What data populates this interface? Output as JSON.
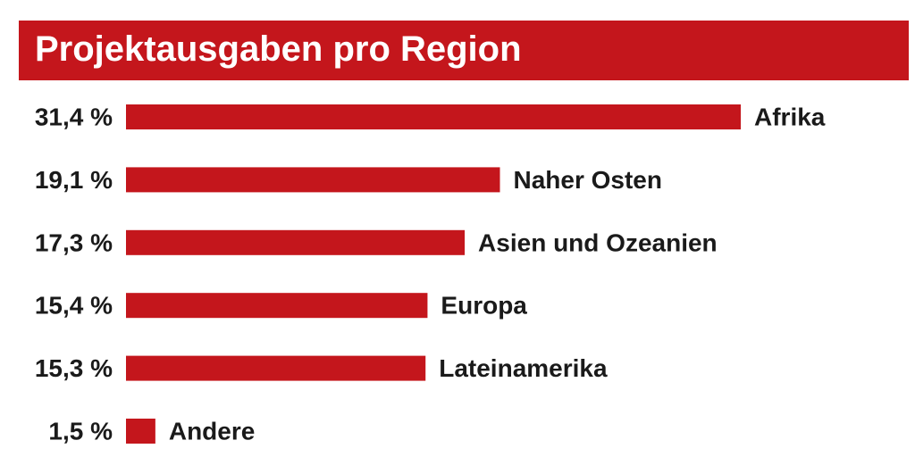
{
  "title": "Projektausgaben pro Region",
  "colors": {
    "accent": "#c4161c",
    "text": "#1a1a1a",
    "title_text": "#ffffff"
  },
  "chart_data": {
    "type": "bar",
    "orientation": "horizontal",
    "title": "Projektausgaben pro Region",
    "categories": [
      "Afrika",
      "Naher Osten",
      "Asien und Ozeanien",
      "Europa",
      "Lateinamerika",
      "Andere"
    ],
    "values": [
      31.4,
      19.1,
      17.3,
      15.4,
      15.3,
      1.5
    ],
    "value_labels": [
      "31,4 %",
      "19,1 %",
      "17,3 %",
      "15,4 %",
      "15,3 %",
      "1,5 %"
    ],
    "unit": "%",
    "xlim": [
      0,
      31.4
    ],
    "grid": false,
    "legend": "none"
  }
}
